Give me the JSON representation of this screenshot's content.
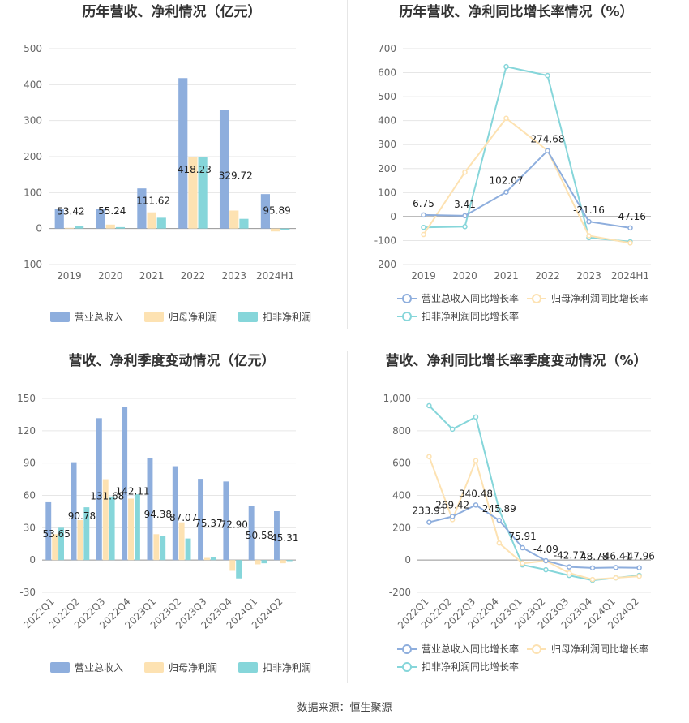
{
  "source_text": "数据来源：恒生聚源",
  "legends": {
    "bar": [
      "营业总收入",
      "归母净利润",
      "扣非净利润"
    ],
    "line": [
      "营业总收入同比增长率",
      "归母净利润同比增长率",
      "扣非净利润同比增长率"
    ]
  },
  "colors": {
    "revenue": "#8eaedd",
    "net_profit": "#fde2b2",
    "deducted_profit": "#86d6da"
  },
  "chart_data": [
    {
      "type": "bar",
      "title": "历年营收、净利情况（亿元）",
      "categories": [
        "2019",
        "2020",
        "2021",
        "2022",
        "2023",
        "2024H1"
      ],
      "ylim": [
        -100,
        500
      ],
      "yticks": [
        -100,
        0,
        100,
        200,
        300,
        400,
        500
      ],
      "series": [
        {
          "name": "营业总收入",
          "values": [
            53.42,
            55.24,
            111.62,
            418.23,
            329.72,
            95.89
          ]
        },
        {
          "name": "归母净利润",
          "values": [
            2,
            11,
            45,
            200,
            50,
            -8
          ]
        },
        {
          "name": "扣非净利润",
          "values": [
            6,
            4,
            30,
            200,
            27,
            -3
          ]
        }
      ],
      "data_labels": [
        "53.42",
        "55.24",
        "111.62",
        "418.23",
        "329.72",
        "95.89"
      ],
      "legend": "bottom"
    },
    {
      "type": "line",
      "title": "历年营收、净利同比增长率情况（%）",
      "categories": [
        "2019",
        "2020",
        "2021",
        "2022",
        "2023",
        "2024H1"
      ],
      "ylim": [
        -200,
        700
      ],
      "yticks": [
        -200,
        -100,
        0,
        100,
        200,
        300,
        400,
        500,
        600,
        700
      ],
      "series": [
        {
          "name": "营业总收入同比增长率",
          "values": [
            6.75,
            3.41,
            102.07,
            274.68,
            -21.16,
            -47.16
          ]
        },
        {
          "name": "归母净利润同比增长率",
          "values": [
            -75,
            185,
            410,
            275,
            -80,
            -110
          ]
        },
        {
          "name": "扣非净利润同比增长率",
          "values": [
            -45,
            -42,
            625,
            588,
            -88,
            -105
          ]
        }
      ],
      "data_labels": [
        "6.75",
        "3.41",
        "102.07",
        "274.68",
        "-21.16",
        "-47.16"
      ],
      "legend": "bottom"
    },
    {
      "type": "bar",
      "title": "营收、净利季度变动情况（亿元）",
      "categories": [
        "2022Q1",
        "2022Q2",
        "2022Q3",
        "2022Q4",
        "2023Q1",
        "2023Q2",
        "2023Q3",
        "2023Q4",
        "2024Q1",
        "2024Q2"
      ],
      "ylim": [
        -30,
        150
      ],
      "yticks": [
        -30,
        0,
        30,
        60,
        90,
        120,
        150
      ],
      "series": [
        {
          "name": "营业总收入",
          "values": [
            53.65,
            90.78,
            131.68,
            142.11,
            94.38,
            87.07,
            75.37,
            72.9,
            50.58,
            45.31
          ]
        },
        {
          "name": "归母净利润",
          "values": [
            24,
            37,
            75,
            57,
            24,
            35,
            2,
            -10,
            -4,
            -3
          ]
        },
        {
          "name": "扣非净利润",
          "values": [
            30,
            49,
            59,
            61,
            22,
            20,
            3,
            -17,
            -3,
            -1
          ]
        }
      ],
      "data_labels": [
        "53.65",
        "90.78",
        "131.68",
        "142.11",
        "94.38",
        "87.07",
        "75.37",
        "72.90",
        "50.58",
        "45.31"
      ],
      "legend": "bottom"
    },
    {
      "type": "line",
      "title": "营收、净利同比增长率季度变动情况（%）",
      "categories": [
        "2022Q1",
        "2022Q2",
        "2022Q3",
        "2022Q4",
        "2023Q1",
        "2023Q2",
        "2023Q3",
        "2023Q4",
        "2024Q1",
        "2024Q2"
      ],
      "ylim": [
        -200,
        1000
      ],
      "yticks": [
        -200,
        0,
        200,
        400,
        600,
        800,
        1000
      ],
      "ytick_labels": [
        "-200",
        "0",
        "200",
        "400",
        "600",
        "800",
        "1,000"
      ],
      "series": [
        {
          "name": "营业总收入同比增长率",
          "values": [
            233.91,
            269.42,
            340.48,
            245.89,
            75.91,
            -4.09,
            -42.77,
            -48.78,
            -46.41,
            -47.96
          ]
        },
        {
          "name": "归母净利润同比增长率",
          "values": [
            640,
            250,
            615,
            105,
            -20,
            -5,
            -80,
            -120,
            -110,
            -100
          ]
        },
        {
          "name": "扣非净利润同比增长率",
          "values": [
            955,
            810,
            885,
            310,
            -30,
            -60,
            -95,
            -125,
            -110,
            -95
          ]
        }
      ],
      "data_labels": [
        "233.91",
        "269.42",
        "340.48",
        "245.89",
        "75.91",
        "-4.09",
        "-42.77",
        "-48.78",
        "-46.41",
        "-47.96"
      ],
      "legend": "bottom"
    }
  ]
}
